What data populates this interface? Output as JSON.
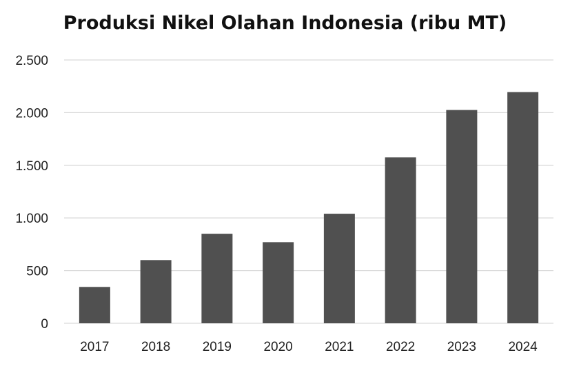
{
  "chart_data": {
    "type": "bar",
    "title": "Produksi Nikel Olahan Indonesia (ribu MT)",
    "categories": [
      "2017",
      "2018",
      "2019",
      "2020",
      "2021",
      "2022",
      "2023",
      "2024"
    ],
    "values": [
      345,
      600,
      850,
      770,
      1040,
      1575,
      2025,
      2195
    ],
    "ylim": [
      0,
      2500
    ],
    "yticks": [
      0,
      500,
      1000,
      1500,
      2000,
      2500
    ],
    "ytick_labels": [
      "0",
      "500",
      "1.000",
      "1.500",
      "2.000",
      "2.500"
    ],
    "grid": true,
    "bar_color": "#505050",
    "grid_color": "#d9d9d9"
  }
}
